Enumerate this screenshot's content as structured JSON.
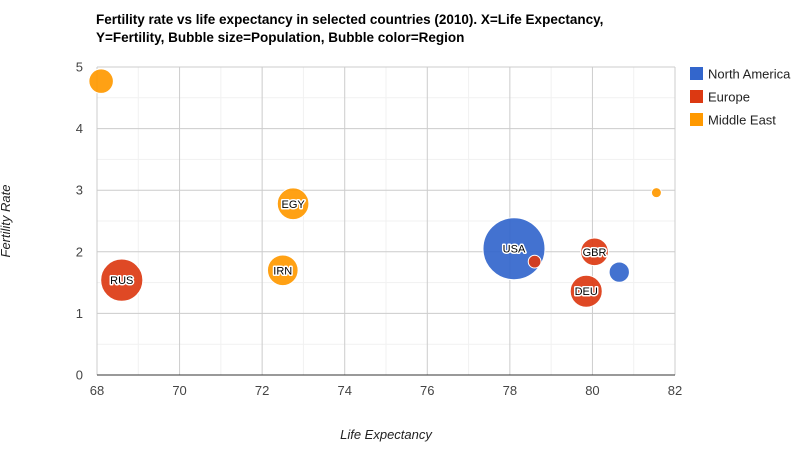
{
  "chart_data": {
    "type": "scatter",
    "subtype": "bubble",
    "title_line1": "Fertility rate vs life expectancy in selected countries (2010). X=Life Expectancy,",
    "title_line2": "Y=Fertility, Bubble size=Population, Bubble color=Region",
    "xlabel": "Life Expectancy",
    "ylabel": "Fertility Rate",
    "xlim": [
      68,
      82
    ],
    "ylim": [
      0,
      5
    ],
    "x_ticks": [
      "68",
      "70",
      "72",
      "74",
      "76",
      "78",
      "80",
      "82"
    ],
    "y_ticks": [
      "0",
      "1",
      "2",
      "3",
      "4",
      "5"
    ],
    "grid": true,
    "legend_position": "right",
    "legend": [
      {
        "name": "North America",
        "color": "#3366cc"
      },
      {
        "name": "Europe",
        "color": "#dc3912"
      },
      {
        "name": "Middle East",
        "color": "#ff9900"
      }
    ],
    "points": [
      {
        "label": "",
        "x": 68.1,
        "y": 4.77,
        "population": 48,
        "region": "Middle East"
      },
      {
        "label": "RUS",
        "x": 68.6,
        "y": 1.54,
        "population": 142,
        "region": "Europe"
      },
      {
        "label": "IRN",
        "x": 72.5,
        "y": 1.7,
        "population": 75,
        "region": "Middle East"
      },
      {
        "label": "EGY",
        "x": 72.75,
        "y": 2.78,
        "population": 80,
        "region": "Middle East"
      },
      {
        "label": "USA",
        "x": 78.1,
        "y": 2.05,
        "population": 307,
        "region": "North America"
      },
      {
        "label": "",
        "x": 78.6,
        "y": 1.84,
        "population": 13,
        "region": "Europe"
      },
      {
        "label": "GBR",
        "x": 80.05,
        "y": 2.0,
        "population": 61,
        "region": "Europe"
      },
      {
        "label": "",
        "x": 80.65,
        "y": 1.67,
        "population": 33,
        "region": "North America"
      },
      {
        "label": "DEU",
        "x": 79.85,
        "y": 1.36,
        "population": 82,
        "region": "Europe"
      },
      {
        "label": "",
        "x": 81.55,
        "y": 2.96,
        "population": 7,
        "region": "Middle East"
      }
    ]
  }
}
